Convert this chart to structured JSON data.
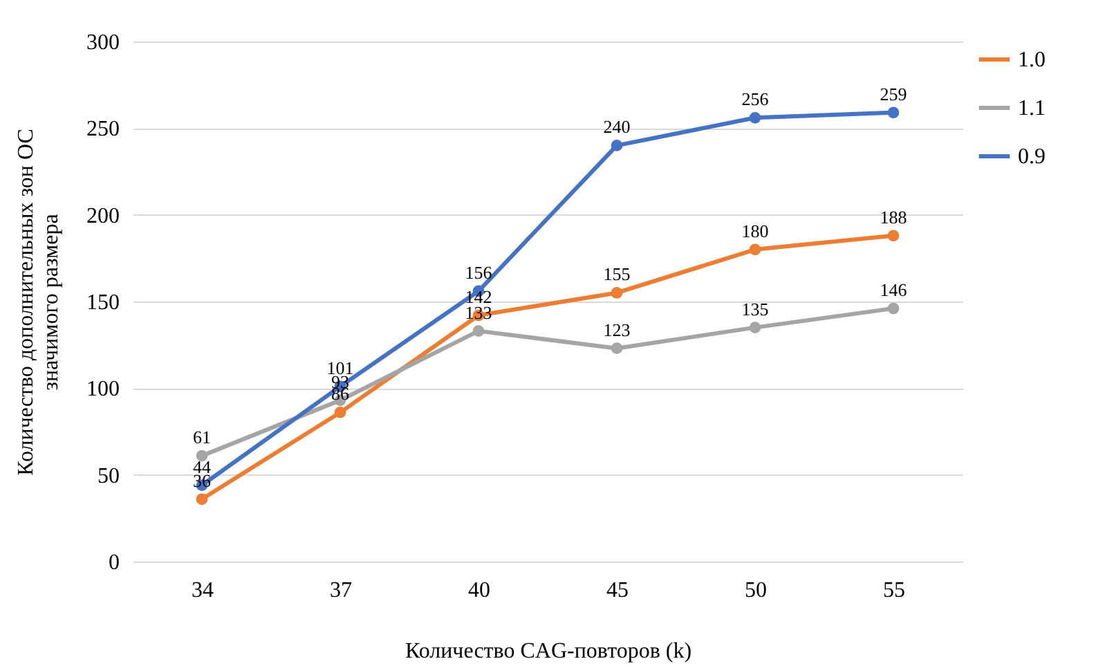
{
  "chart_data": {
    "type": "line",
    "xlabel": "Количество CAG-повторов (k)",
    "ylabel": "Количество дополнительных зон ОС значимого размера",
    "categories": [
      "34",
      "37",
      "40",
      "45",
      "50",
      "55"
    ],
    "series": [
      {
        "name": "1.0",
        "color": "#ed7d31",
        "values": [
          36,
          86,
          142,
          155,
          180,
          188
        ]
      },
      {
        "name": "1.1",
        "color": "#a5a5a5",
        "values": [
          61,
          93,
          133,
          123,
          135,
          146
        ]
      },
      {
        "name": "0.9",
        "color": "#4472c4",
        "values": [
          44,
          101,
          156,
          240,
          256,
          259
        ]
      }
    ],
    "ylim": [
      0,
      300
    ],
    "yticks": [
      0,
      50,
      100,
      150,
      200,
      250,
      300
    ],
    "grid": "y",
    "legend": "right",
    "marker": "circle",
    "line_style": "solid",
    "data_labels": true
  }
}
